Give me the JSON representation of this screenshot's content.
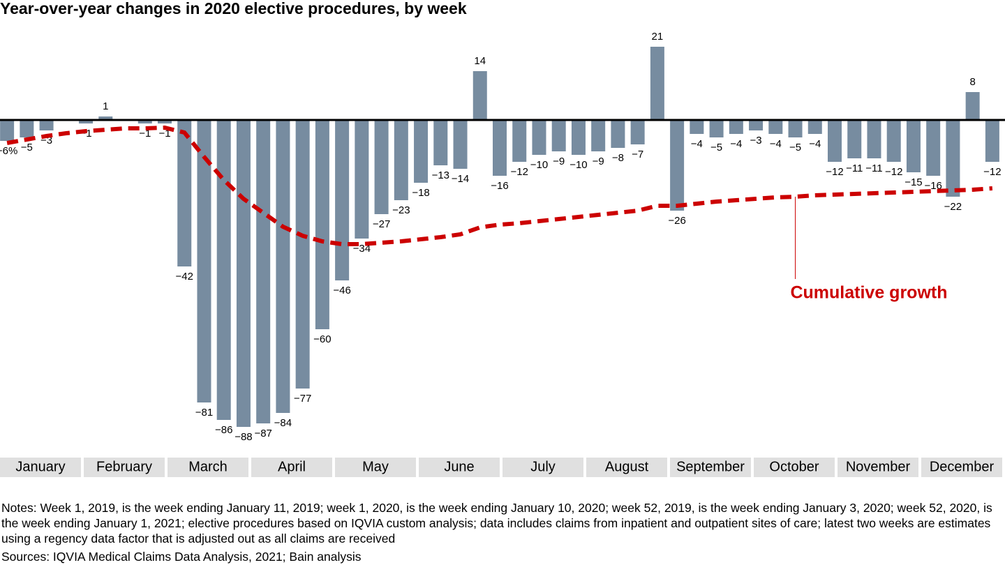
{
  "chart_data": {
    "type": "bar",
    "title": "Year-over-year changes in 2020 elective procedures, by week",
    "values": [
      -6,
      -5,
      -3,
      0,
      -1,
      1,
      0,
      -1,
      -1,
      -42,
      -81,
      -86,
      -88,
      -87,
      -84,
      -77,
      -60,
      -46,
      -34,
      -27,
      -23,
      -18,
      -13,
      -14,
      14,
      -16,
      -12,
      -10,
      -9,
      -10,
      -9,
      -8,
      -7,
      21,
      -26,
      -4,
      -5,
      -4,
      -3,
      -4,
      -5,
      -4,
      -12,
      -11,
      -11,
      -12,
      -15,
      -16,
      -22,
      8,
      -12
    ],
    "value_labels": [
      "−6%",
      "−5",
      "−3",
      null,
      "−1",
      "1",
      null,
      "−1",
      "−1",
      "−42",
      "−81",
      "−86",
      "−88",
      "−87",
      "−84",
      "−77",
      "−60",
      "−46",
      "−34",
      "−27",
      "−23",
      "−18",
      "−13",
      "−14",
      "14",
      "−16",
      "−12",
      "−10",
      "−9",
      "−10",
      "−9",
      "−8",
      "−7",
      "21",
      "−26",
      "−4",
      "−5",
      "−4",
      "−3",
      "−4",
      "−5",
      "−4",
      "−12",
      "−11",
      "−11",
      "−12",
      "−15",
      "−16",
      "−22",
      "8",
      "−12"
    ],
    "color": "#778ca0",
    "cumulative": {
      "name": "Cumulative growth",
      "color": "#cc0000",
      "values": [
        -6.6,
        -5.6,
        -4.6,
        -3.8,
        -3.2,
        -2.8,
        -2.4,
        -2.4,
        -2.2,
        -3.6,
        -10.6,
        -17.2,
        -22.6,
        -26.6,
        -30.6,
        -33.2,
        -34.8,
        -35.6,
        -35.6,
        -35.2,
        -34.8,
        -34.2,
        -33.6,
        -32.8,
        -30.8,
        -30,
        -29.6,
        -29,
        -28.4,
        -27.8,
        -27.2,
        -26.6,
        -26,
        -24.6,
        -24.6,
        -24,
        -23.4,
        -23,
        -22.6,
        -22.2,
        -22,
        -21.6,
        -21.4,
        -21.2,
        -21,
        -20.8,
        -20.6,
        -20.4,
        -20.2,
        -20,
        -19.6
      ]
    },
    "months": [
      "January",
      "February",
      "March",
      "April",
      "May",
      "June",
      "July",
      "August",
      "September",
      "October",
      "November",
      "December"
    ],
    "ylim": [
      -90,
      25
    ],
    "notes": "Notes: Week 1, 2019, is the week ending January 11, 2019; week 1, 2020, is the week ending January 10, 2020; week 52, 2019, is the week ending January 3, 2020; week 52, 2020, is the week ending January 1, 2021; elective procedures based on IQVIA custom analysis; data includes claims from inpatient and outpatient sites of care; latest two weeks are estimates using a regency data factor that is adjusted out as all claims are received",
    "sources": "Sources: IQVIA Medical Claims Data Analysis, 2021; Bain analysis"
  }
}
